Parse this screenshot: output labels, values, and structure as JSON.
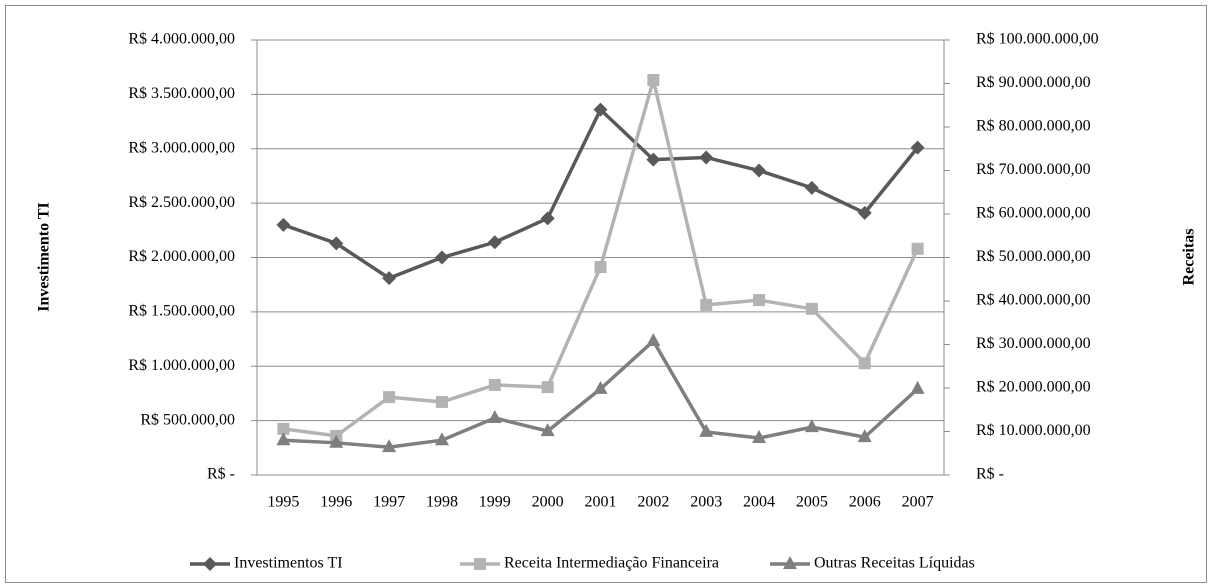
{
  "chart_data": {
    "type": "line",
    "y_label": "Investimento TI",
    "y2_label": "Receitas",
    "categories": [
      "1995",
      "1996",
      "1997",
      "1998",
      "1999",
      "2000",
      "2001",
      "2002",
      "2003",
      "2004",
      "2005",
      "2006",
      "2007"
    ],
    "series": [
      {
        "name": "Investimentos TI",
        "color": "#595959",
        "marker": "diamond",
        "values": [
          2300000,
          2130000,
          1810000,
          2000000,
          2140000,
          2360000,
          3360000,
          2900000,
          2920000,
          2800000,
          2640000,
          2410000,
          3010000
        ]
      },
      {
        "name": "Receita Intermediação Financeira",
        "color": "#b3b3b3",
        "marker": "square",
        "axis": "y2",
        "values": [
          10600000,
          9000000,
          17900000,
          16800000,
          20700000,
          20200000,
          47800000,
          90800000,
          39100000,
          40200000,
          38200000,
          25700000,
          52000000
        ]
      },
      {
        "name": "Outras Receitas Líquidas",
        "color": "#7f7f7f",
        "marker": "triangle",
        "axis": "y2",
        "values": [
          8000000,
          7400000,
          6400000,
          8000000,
          13100000,
          10100000,
          19800000,
          30800000,
          9900000,
          8500000,
          11000000,
          8700000,
          19800000
        ]
      }
    ],
    "ylim": [
      0,
      4000000
    ],
    "yticks": [
      {
        "value": 0,
        "label": "R$ -"
      },
      {
        "value": 500000,
        "label": "R$ 500.000,00"
      },
      {
        "value": 1000000,
        "label": "R$ 1.000.000,00"
      },
      {
        "value": 1500000,
        "label": "R$ 1.500.000,00"
      },
      {
        "value": 2000000,
        "label": "R$ 2.000.000,00"
      },
      {
        "value": 2500000,
        "label": "R$ 2.500.000,00"
      },
      {
        "value": 3000000,
        "label": "R$ 3.000.000,00"
      },
      {
        "value": 3500000,
        "label": "R$ 3.500.000,00"
      },
      {
        "value": 4000000,
        "label": "R$ 4.000.000,00"
      }
    ],
    "y2lim": [
      0,
      100000000
    ],
    "y2ticks": [
      {
        "value": 0,
        "label": "R$ -"
      },
      {
        "value": 10000000,
        "label": "R$ 10.000.000,00"
      },
      {
        "value": 20000000,
        "label": "R$ 20.000.000,00"
      },
      {
        "value": 30000000,
        "label": "R$ 30.000.000,00"
      },
      {
        "value": 40000000,
        "label": "R$ 40.000.000,00"
      },
      {
        "value": 50000000,
        "label": "R$ 50.000.000,00"
      },
      {
        "value": 60000000,
        "label": "R$ 60.000.000,00"
      },
      {
        "value": 70000000,
        "label": "R$ 70.000.000,00"
      },
      {
        "value": 80000000,
        "label": "R$ 80.000.000,00"
      },
      {
        "value": 90000000,
        "label": "R$ 90.000.000,00"
      },
      {
        "value": 100000000,
        "label": "R$ 100.000.000,00"
      }
    ],
    "grid": true,
    "legend": "bottom"
  }
}
